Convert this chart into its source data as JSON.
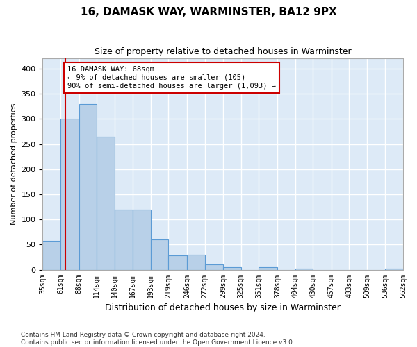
{
  "title1": "16, DAMASK WAY, WARMINSTER, BA12 9PX",
  "title2": "Size of property relative to detached houses in Warminster",
  "xlabel": "Distribution of detached houses by size in Warminster",
  "ylabel": "Number of detached properties",
  "bar_edges": [
    35,
    61,
    88,
    114,
    140,
    167,
    193,
    219,
    246,
    272,
    299,
    325,
    351,
    378,
    404,
    430,
    457,
    483,
    509,
    536,
    562
  ],
  "bar_heights": [
    57,
    300,
    330,
    265,
    120,
    120,
    60,
    28,
    30,
    10,
    5,
    0,
    5,
    0,
    2,
    0,
    0,
    0,
    0,
    2
  ],
  "bar_color": "#b8d0e8",
  "bar_edge_color": "#5b9bd5",
  "bg_color": "#ddeaf7",
  "grid_color": "#ffffff",
  "vline_x": 68,
  "vline_color": "#cc0000",
  "annotation_text": "16 DAMASK WAY: 68sqm\n← 9% of detached houses are smaller (105)\n90% of semi-detached houses are larger (1,093) →",
  "annotation_box_color": "#ffffff",
  "annotation_box_edge": "#cc0000",
  "ylim": [
    0,
    420
  ],
  "yticks": [
    0,
    50,
    100,
    150,
    200,
    250,
    300,
    350,
    400
  ],
  "footer1": "Contains HM Land Registry data © Crown copyright and database right 2024.",
  "footer2": "Contains public sector information licensed under the Open Government Licence v3.0."
}
